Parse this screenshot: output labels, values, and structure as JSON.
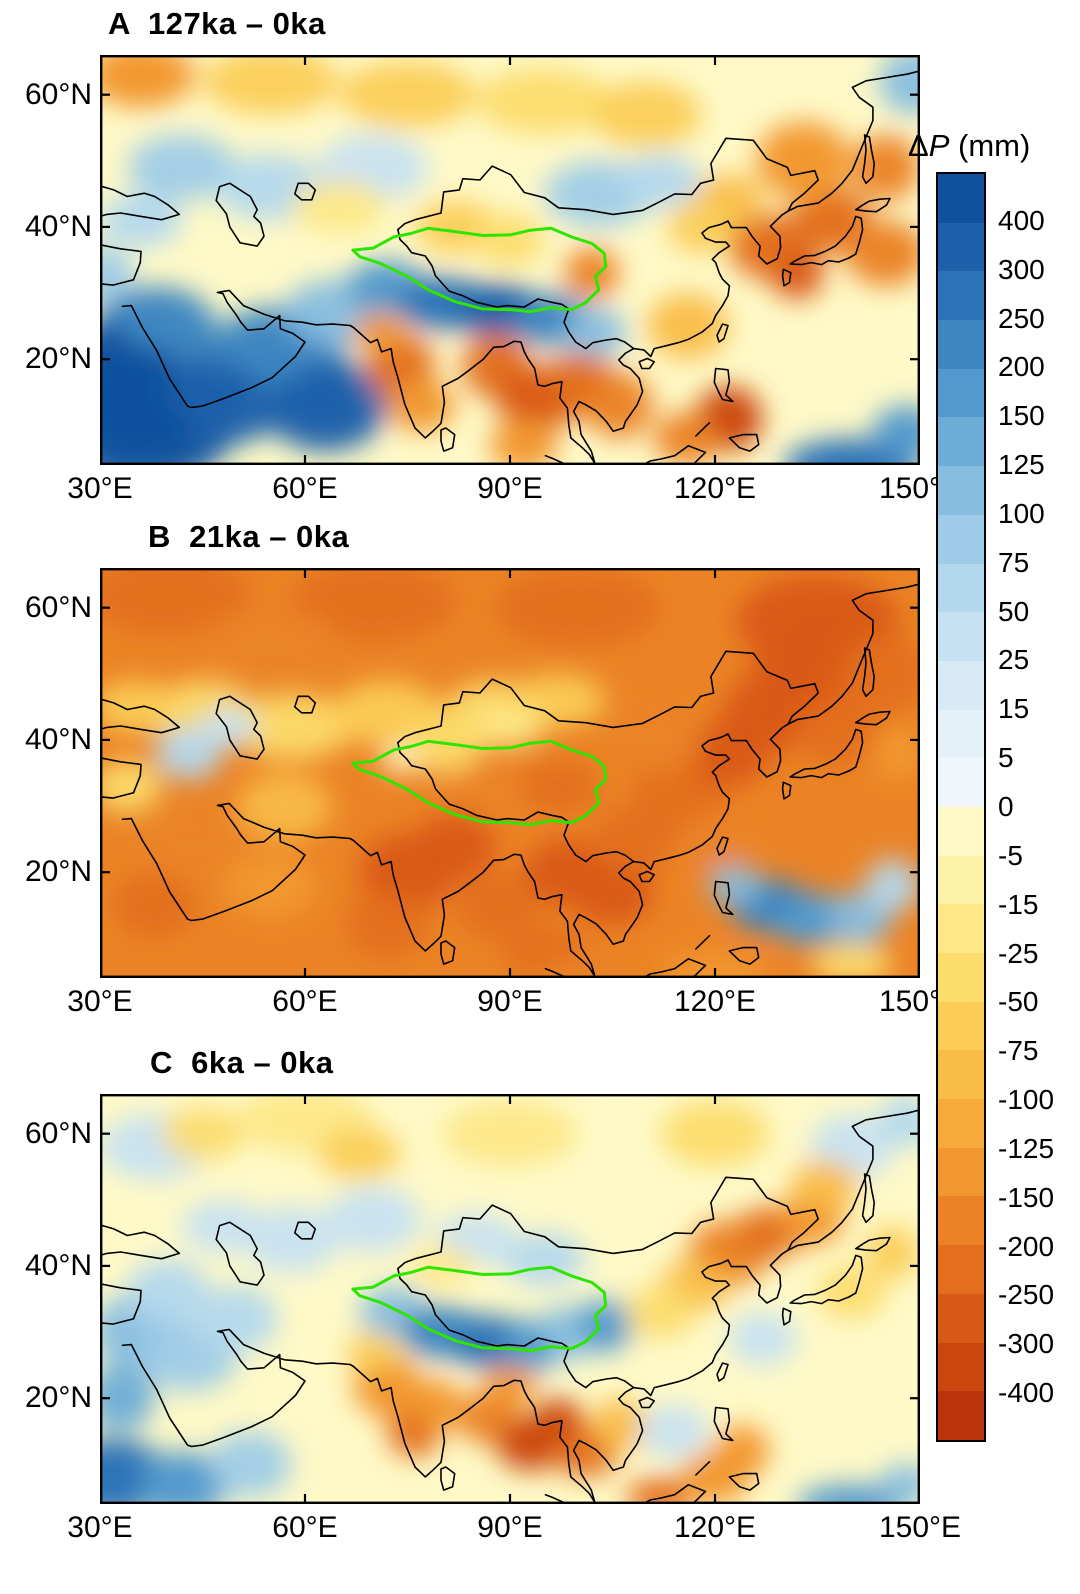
{
  "figure": {
    "background_color": "#ffffff",
    "coastline_color": "#000000",
    "tibet_outline_color": "#2FE500",
    "panels": [
      {
        "letter": "A",
        "period": "127ka – 0ka",
        "title": "A  127ka – 0ka"
      },
      {
        "letter": "B",
        "period": "21ka – 0ka",
        "title": "B  21ka – 0ka"
      },
      {
        "letter": "C",
        "period": "6ka – 0ka",
        "title": "C  6ka – 0ka"
      }
    ],
    "axis": {
      "x_ticks": [
        "30°E",
        "60°E",
        "90°E",
        "120°E",
        "150°E"
      ],
      "y_ticks": [
        "60°N",
        "40°N",
        "20°N"
      ]
    },
    "colorbar": {
      "title_delta": "Δ",
      "title_var": "P",
      "title_unit": " (mm)",
      "levels": [
        400,
        300,
        250,
        200,
        150,
        125,
        100,
        75,
        50,
        25,
        15,
        5,
        0,
        -5,
        -15,
        -25,
        -50,
        -75,
        -100,
        -125,
        -150,
        -200,
        -250,
        -300,
        -400
      ],
      "segment_colors": [
        "#10519E",
        "#1E61AB",
        "#2B73B7",
        "#3C86C2",
        "#529ACD",
        "#6CACD7",
        "#87BEE0",
        "#9ECCE8",
        "#B3D8EE",
        "#C6E1F2",
        "#D7EAF6",
        "#E4F1F9",
        "#EFF7FC",
        "#FEF9C7",
        "#FDF1A6",
        "#FDE888",
        "#FCDC6C",
        "#FBCD56",
        "#F9BC46",
        "#F6AA3A",
        "#F2972F",
        "#EB8326",
        "#E36F1E",
        "#D95A16",
        "#CB460F",
        "#BA330A"
      ]
    }
  },
  "chart_data": [
    {
      "type": "heatmap",
      "title": "A  127ka – 0ka",
      "variable": "precipitation difference ΔP",
      "units": "mm",
      "lon_range": [
        30,
        150
      ],
      "lat_range": [
        4,
        66
      ],
      "x_tick_labels": [
        "30°E",
        "60°E",
        "90°E",
        "120°E",
        "150°E"
      ],
      "y_tick_labels": [
        "60°N",
        "40°N",
        "20°N"
      ],
      "contour_levels_mm": [
        400,
        300,
        250,
        200,
        150,
        125,
        100,
        75,
        50,
        25,
        15,
        5,
        0,
        -5,
        -15,
        -25,
        -50,
        -75,
        -100,
        -125,
        -150,
        -200,
        -250,
        -300,
        -400
      ],
      "base_value_mm": -4,
      "anomaly_regions_columns": [
        "lon",
        "lat",
        "value_mm",
        "rx_deg",
        "ry_deg"
      ],
      "anomaly_regions": [
        [
          36,
          10,
          450,
          14,
          9
        ],
        [
          47,
          15,
          350,
          12,
          8
        ],
        [
          56,
          21,
          200,
          10,
          7
        ],
        [
          38,
          25,
          200,
          9,
          6
        ],
        [
          63,
          13,
          300,
          9,
          7
        ],
        [
          33,
          18,
          400,
          8,
          8
        ],
        [
          64,
          27,
          100,
          7,
          5
        ],
        [
          30,
          33,
          75,
          5,
          4
        ],
        [
          72,
          31,
          150,
          6,
          4
        ],
        [
          80,
          28.5,
          250,
          7,
          4
        ],
        [
          88,
          27.5,
          300,
          7,
          4
        ],
        [
          96,
          26,
          200,
          6,
          4
        ],
        [
          102,
          24,
          100,
          5,
          4
        ],
        [
          74,
          19,
          -250,
          5,
          5
        ],
        [
          77,
          13,
          -150,
          5,
          4
        ],
        [
          71,
          24,
          -150,
          4,
          3
        ],
        [
          88,
          19,
          -250,
          5,
          5
        ],
        [
          94,
          14,
          -300,
          6,
          5
        ],
        [
          100,
          16,
          -250,
          6,
          5
        ],
        [
          106,
          13,
          -200,
          5,
          5
        ],
        [
          92,
          7,
          -150,
          5,
          4
        ],
        [
          122,
          11,
          -350,
          5,
          5
        ],
        [
          116,
          8,
          -200,
          5,
          4
        ],
        [
          140,
          4,
          250,
          10,
          4
        ],
        [
          148,
          9,
          150,
          5,
          4
        ],
        [
          116,
          25,
          -100,
          6,
          5
        ],
        [
          102,
          33,
          -200,
          4,
          4
        ],
        [
          128,
          37,
          -250,
          6,
          5
        ],
        [
          137,
          41,
          -250,
          6,
          5
        ],
        [
          145,
          36,
          -200,
          6,
          5
        ],
        [
          133,
          50,
          -150,
          7,
          6
        ],
        [
          145,
          49,
          -200,
          5,
          5
        ],
        [
          122,
          44,
          -100,
          5,
          4
        ],
        [
          132,
          33,
          -300,
          4,
          4
        ],
        [
          36,
          63,
          -150,
          8,
          5
        ],
        [
          55,
          62,
          -75,
          10,
          5
        ],
        [
          75,
          60,
          -75,
          10,
          5
        ],
        [
          95,
          59,
          -50,
          10,
          5
        ],
        [
          110,
          57,
          -75,
          8,
          5
        ],
        [
          149,
          62,
          100,
          5,
          5
        ],
        [
          42,
          49,
          75,
          8,
          5
        ],
        [
          55,
          46,
          50,
          8,
          5
        ],
        [
          36,
          41,
          50,
          6,
          4
        ],
        [
          70,
          49,
          25,
          8,
          5
        ],
        [
          103,
          45,
          75,
          8,
          5
        ],
        [
          112,
          47,
          50,
          6,
          4
        ],
        [
          82,
          40,
          -75,
          6,
          4
        ],
        [
          90,
          38,
          -50,
          5,
          4
        ],
        [
          65,
          43,
          -25,
          7,
          4
        ],
        [
          118,
          40,
          -75,
          5,
          4
        ]
      ]
    },
    {
      "type": "heatmap",
      "title": "B  21ka – 0ka",
      "variable": "precipitation difference ΔP",
      "units": "mm",
      "lon_range": [
        30,
        150
      ],
      "lat_range": [
        4,
        66
      ],
      "x_tick_labels": [
        "30°E",
        "60°E",
        "90°E",
        "120°E",
        "150°E"
      ],
      "y_tick_labels": [
        "60°N",
        "40°N",
        "20°N"
      ],
      "contour_levels_mm": [
        400,
        300,
        250,
        200,
        150,
        125,
        100,
        75,
        50,
        25,
        15,
        5,
        0,
        -5,
        -15,
        -25,
        -50,
        -75,
        -100,
        -125,
        -150,
        -200,
        -250,
        -300,
        -400
      ],
      "base_value_mm": -160,
      "anomaly_regions_columns": [
        "lon",
        "lat",
        "value_mm",
        "rx_deg",
        "ry_deg"
      ],
      "anomaly_regions": [
        [
          40,
          62,
          -250,
          12,
          6
        ],
        [
          70,
          61,
          -250,
          12,
          6
        ],
        [
          100,
          60,
          -250,
          12,
          6
        ],
        [
          135,
          58,
          -300,
          12,
          7
        ],
        [
          55,
          55,
          -200,
          10,
          5
        ],
        [
          45,
          44,
          -50,
          8,
          5
        ],
        [
          58,
          42,
          -50,
          9,
          5
        ],
        [
          72,
          44,
          -75,
          8,
          5
        ],
        [
          88,
          44,
          -50,
          8,
          5
        ],
        [
          97,
          46,
          -75,
          7,
          4
        ],
        [
          35,
          45,
          -75,
          6,
          4
        ],
        [
          43,
          38,
          50,
          5,
          4
        ],
        [
          49,
          42,
          25,
          4,
          3
        ],
        [
          34,
          33,
          -50,
          5,
          4
        ],
        [
          45,
          22,
          -200,
          9,
          6
        ],
        [
          55,
          18,
          -150,
          7,
          5
        ],
        [
          38,
          15,
          -250,
          6,
          5
        ],
        [
          57,
          30,
          -100,
          7,
          5
        ],
        [
          80,
          39,
          -50,
          6,
          4
        ],
        [
          74,
          37,
          -5,
          3,
          2
        ],
        [
          90,
          42,
          -25,
          5,
          3
        ],
        [
          88,
          32,
          -200,
          8,
          4
        ],
        [
          97,
          33,
          -250,
          6,
          4
        ],
        [
          75,
          20,
          -300,
          7,
          6
        ],
        [
          82,
          24,
          -300,
          6,
          5
        ],
        [
          72,
          12,
          -250,
          6,
          5
        ],
        [
          88,
          15,
          -250,
          6,
          5
        ],
        [
          98,
          20,
          -300,
          6,
          5
        ],
        [
          105,
          17,
          -300,
          6,
          5
        ],
        [
          95,
          8,
          -250,
          6,
          4
        ],
        [
          108,
          25,
          -250,
          6,
          5
        ],
        [
          115,
          32,
          -250,
          7,
          6
        ],
        [
          122,
          38,
          -300,
          6,
          5
        ],
        [
          112,
          40,
          -200,
          6,
          5
        ],
        [
          128,
          44,
          -300,
          7,
          6
        ],
        [
          138,
          42,
          -250,
          6,
          6
        ],
        [
          132,
          50,
          -300,
          7,
          6
        ],
        [
          145,
          50,
          -250,
          6,
          6
        ],
        [
          120,
          25,
          -200,
          5,
          4
        ],
        [
          128,
          15,
          200,
          6,
          4
        ],
        [
          134,
          13,
          150,
          6,
          4
        ],
        [
          123,
          18,
          100,
          4,
          3
        ],
        [
          141,
          13,
          100,
          5,
          4
        ],
        [
          146,
          18,
          50,
          4,
          4
        ],
        [
          120,
          5,
          -150,
          8,
          3
        ],
        [
          140,
          6,
          -50,
          6,
          3
        ],
        [
          100,
          4,
          -200,
          6,
          3
        ],
        [
          147,
          38,
          -150,
          4,
          4
        ]
      ]
    },
    {
      "type": "heatmap",
      "title": "C  6ka – 0ka",
      "variable": "precipitation difference ΔP",
      "units": "mm",
      "lon_range": [
        30,
        150
      ],
      "lat_range": [
        4,
        66
      ],
      "x_tick_labels": [
        "30°E",
        "60°E",
        "90°E",
        "120°E",
        "150°E"
      ],
      "y_tick_labels": [
        "60°N",
        "40°N",
        "20°N"
      ],
      "contour_levels_mm": [
        400,
        300,
        250,
        200,
        150,
        125,
        100,
        75,
        50,
        25,
        15,
        5,
        0,
        -5,
        -15,
        -25,
        -50,
        -75,
        -100,
        -125,
        -150,
        -200,
        -250,
        -300,
        -400
      ],
      "base_value_mm": -4,
      "anomaly_regions_columns": [
        "lon",
        "lat",
        "value_mm",
        "rx_deg",
        "ry_deg"
      ],
      "anomaly_regions": [
        [
          38,
          58,
          25,
          8,
          5
        ],
        [
          60,
          62,
          -25,
          10,
          5
        ],
        [
          90,
          60,
          -25,
          10,
          5
        ],
        [
          120,
          60,
          -50,
          8,
          5
        ],
        [
          140,
          58,
          25,
          6,
          5
        ],
        [
          148,
          62,
          50,
          4,
          4
        ],
        [
          68,
          57,
          -75,
          6,
          4
        ],
        [
          45,
          60,
          -50,
          6,
          4
        ],
        [
          36,
          30,
          100,
          7,
          6
        ],
        [
          43,
          26,
          75,
          7,
          5
        ],
        [
          40,
          36,
          50,
          6,
          5
        ],
        [
          50,
          32,
          50,
          6,
          5
        ],
        [
          33,
          20,
          125,
          5,
          5
        ],
        [
          32,
          8,
          250,
          8,
          6
        ],
        [
          42,
          7,
          150,
          7,
          5
        ],
        [
          52,
          10,
          75,
          6,
          5
        ],
        [
          58,
          44,
          25,
          7,
          5
        ],
        [
          70,
          47,
          25,
          7,
          5
        ],
        [
          48,
          46,
          25,
          6,
          4
        ],
        [
          73,
          33,
          100,
          5,
          4
        ],
        [
          80,
          30,
          200,
          6,
          4
        ],
        [
          87,
          28.5,
          250,
          6,
          4
        ],
        [
          93,
          28,
          150,
          5,
          4
        ],
        [
          99,
          30,
          100,
          5,
          4
        ],
        [
          104,
          31,
          150,
          4,
          4
        ],
        [
          95,
          41,
          50,
          6,
          4
        ],
        [
          85,
          44,
          25,
          6,
          4
        ],
        [
          80,
          40,
          -25,
          5,
          3
        ],
        [
          72,
          22,
          -150,
          5,
          5
        ],
        [
          76,
          15,
          -250,
          4,
          4
        ],
        [
          70,
          27,
          -75,
          4,
          3
        ],
        [
          79,
          19,
          -150,
          4,
          4
        ],
        [
          87,
          17,
          -200,
          5,
          4
        ],
        [
          93,
          13,
          -350,
          5,
          4
        ],
        [
          97,
          16,
          -400,
          4,
          4
        ],
        [
          101,
          12,
          -250,
          5,
          4
        ],
        [
          90,
          22,
          -150,
          4,
          3
        ],
        [
          106,
          16,
          -100,
          4,
          4
        ],
        [
          112,
          5,
          -250,
          5,
          3
        ],
        [
          120,
          8,
          -150,
          5,
          4
        ],
        [
          124,
          12,
          -150,
          4,
          4
        ],
        [
          140,
          4,
          150,
          8,
          3
        ],
        [
          148,
          7,
          100,
          4,
          3
        ],
        [
          114,
          15,
          25,
          5,
          4
        ],
        [
          122,
          42,
          -200,
          6,
          5
        ],
        [
          128,
          45,
          -250,
          5,
          4
        ],
        [
          134,
          47,
          -150,
          5,
          4
        ],
        [
          117,
          37,
          -100,
          5,
          4
        ],
        [
          112,
          33,
          -50,
          5,
          4
        ],
        [
          140,
          36,
          -50,
          5,
          4
        ],
        [
          146,
          42,
          -75,
          4,
          4
        ],
        [
          127,
          29,
          25,
          5,
          4
        ],
        [
          136,
          52,
          -100,
          5,
          4
        ]
      ]
    }
  ]
}
